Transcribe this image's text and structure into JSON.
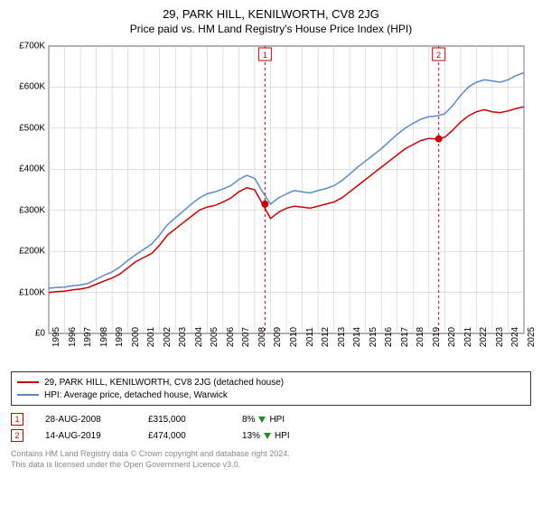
{
  "title": "29, PARK HILL, KENILWORTH, CV8 2JG",
  "subtitle": "Price paid vs. HM Land Registry's House Price Index (HPI)",
  "chart": {
    "type": "line",
    "background_color": "#ffffff",
    "grid_color": "#cccccc",
    "axis_color": "#000000",
    "x_range": [
      1995,
      2025
    ],
    "y_range": [
      0,
      700
    ],
    "y_unit_prefix": "£",
    "y_unit_suffix": "K",
    "y_ticks": [
      0,
      100,
      200,
      300,
      400,
      500,
      600,
      700
    ],
    "x_ticks": [
      1995,
      1996,
      1997,
      1998,
      1999,
      2000,
      2001,
      2002,
      2003,
      2004,
      2005,
      2006,
      2007,
      2008,
      2009,
      2010,
      2011,
      2012,
      2013,
      2014,
      2015,
      2016,
      2017,
      2018,
      2019,
      2020,
      2021,
      2022,
      2023,
      2024,
      2025
    ],
    "series": [
      {
        "name": "29, PARK HILL, KENILWORTH, CV8 2JG (detached house)",
        "color": "#cc0000",
        "line_width": 1.5,
        "data": [
          [
            1995,
            100
          ],
          [
            1995.5,
            102
          ],
          [
            1996,
            103
          ],
          [
            1996.5,
            106
          ],
          [
            1997,
            108
          ],
          [
            1997.5,
            112
          ],
          [
            1998,
            120
          ],
          [
            1998.5,
            128
          ],
          [
            1999,
            135
          ],
          [
            1999.5,
            145
          ],
          [
            2000,
            160
          ],
          [
            2000.5,
            175
          ],
          [
            2001,
            185
          ],
          [
            2001.5,
            195
          ],
          [
            2002,
            215
          ],
          [
            2002.5,
            240
          ],
          [
            2003,
            255
          ],
          [
            2003.5,
            270
          ],
          [
            2004,
            285
          ],
          [
            2004.5,
            300
          ],
          [
            2005,
            308
          ],
          [
            2005.5,
            312
          ],
          [
            2006,
            320
          ],
          [
            2006.5,
            330
          ],
          [
            2007,
            345
          ],
          [
            2007.5,
            355
          ],
          [
            2008,
            350
          ],
          [
            2008.5,
            315
          ],
          [
            2009,
            280
          ],
          [
            2009.5,
            295
          ],
          [
            2010,
            305
          ],
          [
            2010.5,
            310
          ],
          [
            2011,
            308
          ],
          [
            2011.5,
            305
          ],
          [
            2012,
            310
          ],
          [
            2012.5,
            315
          ],
          [
            2013,
            320
          ],
          [
            2013.5,
            330
          ],
          [
            2014,
            345
          ],
          [
            2014.5,
            360
          ],
          [
            2015,
            375
          ],
          [
            2015.5,
            390
          ],
          [
            2016,
            405
          ],
          [
            2016.5,
            420
          ],
          [
            2017,
            435
          ],
          [
            2017.5,
            450
          ],
          [
            2018,
            460
          ],
          [
            2018.5,
            470
          ],
          [
            2019,
            475
          ],
          [
            2019.5,
            474
          ],
          [
            2020,
            478
          ],
          [
            2020.5,
            495
          ],
          [
            2021,
            515
          ],
          [
            2021.5,
            530
          ],
          [
            2022,
            540
          ],
          [
            2022.5,
            545
          ],
          [
            2023,
            540
          ],
          [
            2023.5,
            538
          ],
          [
            2024,
            542
          ],
          [
            2024.5,
            548
          ],
          [
            2025,
            552
          ]
        ]
      },
      {
        "name": "HPI: Average price, detached house, Warwick",
        "color": "#5b8bc9",
        "line_width": 1.5,
        "data": [
          [
            1995,
            110
          ],
          [
            1995.5,
            112
          ],
          [
            1996,
            113
          ],
          [
            1996.5,
            116
          ],
          [
            1997,
            118
          ],
          [
            1997.5,
            122
          ],
          [
            1998,
            132
          ],
          [
            1998.5,
            142
          ],
          [
            1999,
            150
          ],
          [
            1999.5,
            162
          ],
          [
            2000,
            178
          ],
          [
            2000.5,
            192
          ],
          [
            2001,
            205
          ],
          [
            2001.5,
            218
          ],
          [
            2002,
            240
          ],
          [
            2002.5,
            265
          ],
          [
            2003,
            282
          ],
          [
            2003.5,
            298
          ],
          [
            2004,
            315
          ],
          [
            2004.5,
            330
          ],
          [
            2005,
            340
          ],
          [
            2005.5,
            345
          ],
          [
            2006,
            352
          ],
          [
            2006.5,
            360
          ],
          [
            2007,
            375
          ],
          [
            2007.5,
            385
          ],
          [
            2008,
            378
          ],
          [
            2008.5,
            345
          ],
          [
            2009,
            315
          ],
          [
            2009.5,
            330
          ],
          [
            2010,
            340
          ],
          [
            2010.5,
            348
          ],
          [
            2011,
            345
          ],
          [
            2011.5,
            342
          ],
          [
            2012,
            348
          ],
          [
            2012.5,
            353
          ],
          [
            2013,
            360
          ],
          [
            2013.5,
            372
          ],
          [
            2014,
            388
          ],
          [
            2014.5,
            405
          ],
          [
            2015,
            420
          ],
          [
            2015.5,
            435
          ],
          [
            2016,
            450
          ],
          [
            2016.5,
            468
          ],
          [
            2017,
            485
          ],
          [
            2017.5,
            500
          ],
          [
            2018,
            512
          ],
          [
            2018.5,
            522
          ],
          [
            2019,
            528
          ],
          [
            2019.5,
            530
          ],
          [
            2020,
            535
          ],
          [
            2020.5,
            555
          ],
          [
            2021,
            580
          ],
          [
            2021.5,
            600
          ],
          [
            2022,
            612
          ],
          [
            2022.5,
            618
          ],
          [
            2023,
            615
          ],
          [
            2023.5,
            612
          ],
          [
            2024,
            618
          ],
          [
            2024.5,
            628
          ],
          [
            2025,
            635
          ]
        ]
      }
    ],
    "sale_markers": [
      {
        "label": "1",
        "x": 2008.65,
        "y": 315,
        "color": "#cc0000",
        "vline_color": "#cc0000"
      },
      {
        "label": "2",
        "x": 2019.62,
        "y": 474,
        "color": "#cc0000",
        "vline_color": "#cc0000"
      }
    ],
    "marker_radius": 4,
    "vline_dash": "3,3",
    "label_fontsize": 10,
    "title_fontsize": 13
  },
  "legend": {
    "items": [
      {
        "color": "#cc0000",
        "label": "29, PARK HILL, KENILWORTH, CV8 2JG (detached house)"
      },
      {
        "color": "#5b8bc9",
        "label": "HPI: Average price, detached house, Warwick"
      }
    ]
  },
  "sales": [
    {
      "marker": "1",
      "date": "28-AUG-2008",
      "price": "£315,000",
      "delta": "8%",
      "delta_dir": "down",
      "delta_suffix": "HPI"
    },
    {
      "marker": "2",
      "date": "14-AUG-2019",
      "price": "£474,000",
      "delta": "13%",
      "delta_dir": "down",
      "delta_suffix": "HPI"
    }
  ],
  "footer": {
    "line1": "Contains HM Land Registry data © Crown copyright and database right 2024.",
    "line2": "This data is licensed under the Open Government Licence v3.0."
  }
}
